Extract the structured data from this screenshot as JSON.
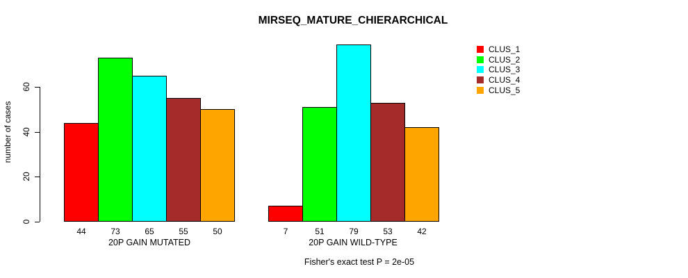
{
  "title": "MIRSEQ_MATURE_CHIERARCHICAL",
  "subtitle": "Fisher's exact test P = 2e-05",
  "ylabel": "number of cases",
  "chart_data": {
    "type": "bar",
    "title": "MIRSEQ_MATURE_CHIERARCHICAL",
    "xlabel": "",
    "ylabel": "number of cases",
    "ylim": [
      0,
      79
    ],
    "yticks": [
      0,
      20,
      40,
      60
    ],
    "grid": false,
    "legend_position": "right",
    "categories": [
      "20P GAIN MUTATED",
      "20P GAIN WILD-TYPE"
    ],
    "series": [
      {
        "name": "CLUS_1",
        "color": "#FF0000",
        "values": [
          44,
          7
        ]
      },
      {
        "name": "CLUS_2",
        "color": "#00FF00",
        "values": [
          73,
          51
        ]
      },
      {
        "name": "CLUS_3",
        "color": "#00FFFF",
        "values": [
          65,
          79
        ]
      },
      {
        "name": "CLUS_4",
        "color": "#A52A2A",
        "values": [
          55,
          53
        ]
      },
      {
        "name": "CLUS_5",
        "color": "#FFA500",
        "values": [
          50,
          42
        ]
      }
    ],
    "groups": [
      {
        "label": "20P GAIN MUTATED",
        "values": [
          44,
          73,
          65,
          55,
          50
        ]
      },
      {
        "label": "20P GAIN WILD-TYPE",
        "values": [
          7,
          51,
          79,
          53,
          42
        ]
      }
    ],
    "bar_value_labels": [
      [
        "44",
        "73",
        "65",
        "55",
        "50"
      ],
      [
        "7",
        "51",
        "79",
        "53",
        "42"
      ]
    ],
    "annotation": "Fisher's exact test P = 2e-05"
  },
  "legend": {
    "entries": [
      {
        "label": "CLUS_1",
        "color": "#FF0000"
      },
      {
        "label": "CLUS_2",
        "color": "#00FF00"
      },
      {
        "label": "CLUS_3",
        "color": "#00FFFF"
      },
      {
        "label": "CLUS_4",
        "color": "#A52A2A"
      },
      {
        "label": "CLUS_5",
        "color": "#FFA500"
      }
    ]
  }
}
